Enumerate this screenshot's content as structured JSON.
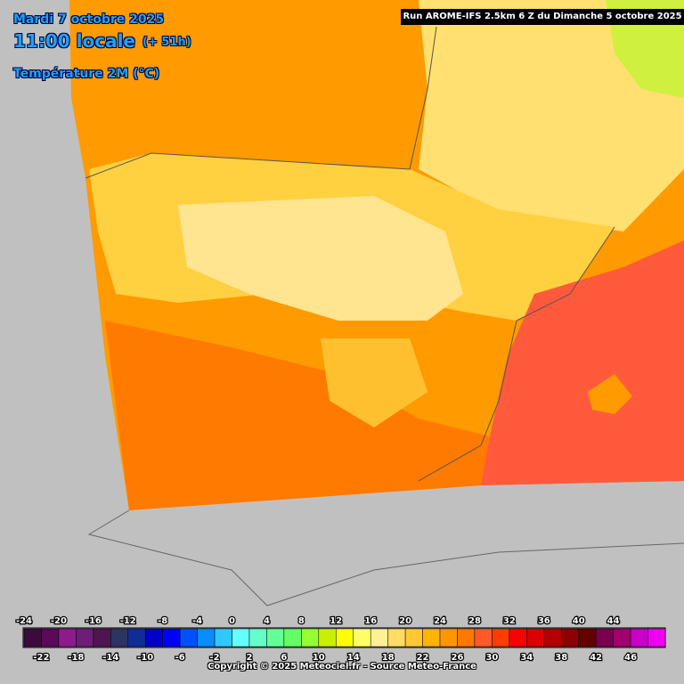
{
  "header": {
    "date": "Mardi 7 octobre 2025",
    "time": "11:00 locale",
    "lead": "(+ 51h)",
    "variable": "Température 2M (°C)",
    "run": "Run AROME-IFS 2.5km 6 Z du Dimanche 5 octobre 2025"
  },
  "legend": {
    "labels": [
      -24,
      -22,
      -20,
      -18,
      -16,
      -14,
      -12,
      -10,
      -8,
      -6,
      -4,
      -2,
      0,
      2,
      4,
      6,
      8,
      10,
      12,
      14,
      16,
      18,
      20,
      22,
      24,
      26,
      28,
      30,
      32,
      34,
      36,
      38,
      40,
      42,
      44,
      46
    ],
    "colors": [
      "#3c0a3c",
      "#5a0a5a",
      "#8c1c8c",
      "#6e1e78",
      "#501450",
      "#2c3464",
      "#102c96",
      "#0000c8",
      "#0000ff",
      "#0050ff",
      "#0a8cff",
      "#30c8ff",
      "#64ffff",
      "#64ffc8",
      "#64ff96",
      "#64ff64",
      "#96ff32",
      "#c8f000",
      "#ffff00",
      "#ffff64",
      "#fff096",
      "#ffdc64",
      "#ffc832",
      "#ffb400",
      "#ff9600",
      "#ff7800",
      "#ff5a28",
      "#ff3c00",
      "#ff0000",
      "#dc0000",
      "#b40000",
      "#8c0000",
      "#640000",
      "#780050",
      "#a0006e",
      "#c800c8",
      "#f000f0"
    ]
  },
  "footer": {
    "copyright": "Copyright © 2025 Meteociel.fr - Source Meteo-France"
  }
}
